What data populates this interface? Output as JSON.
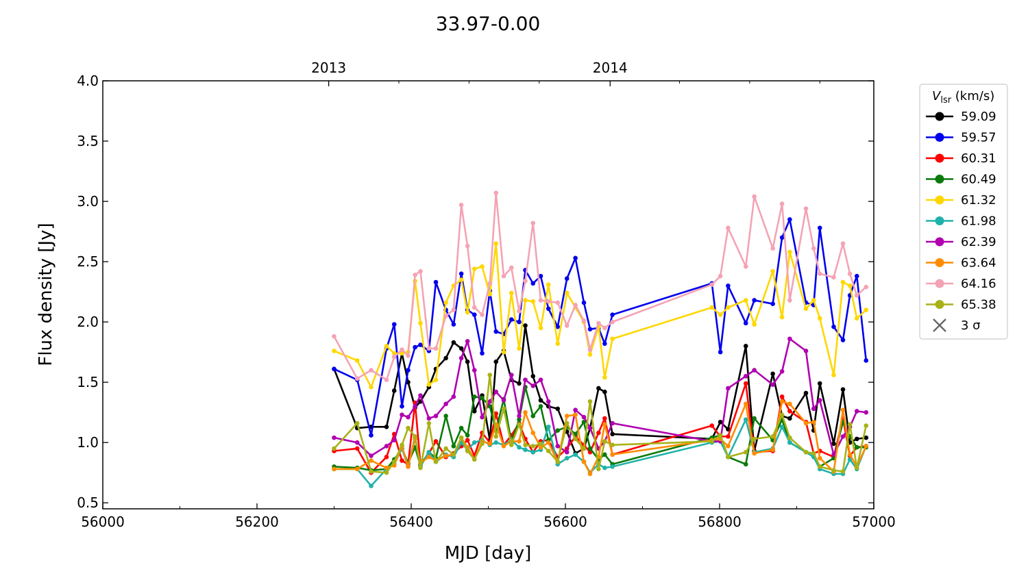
{
  "chart_data": {
    "type": "line",
    "title": "33.97-0.00",
    "xlabel": "MJD [day]",
    "ylabel": "Flux density [Jy]",
    "xlim": [
      56000,
      57000
    ],
    "ylim": [
      0.45,
      4.0
    ],
    "x_ticks": [
      56000,
      56200,
      56400,
      56600,
      56800,
      57000
    ],
    "x_tick_labels": [
      "56000",
      "56200",
      "56400",
      "56600",
      "56800",
      "57000"
    ],
    "y_ticks": [
      0.5,
      1.0,
      1.5,
      2.0,
      2.5,
      3.0,
      3.5,
      4.0
    ],
    "y_tick_labels": [
      "0.5",
      "1.0",
      "1.5",
      "2.0",
      "2.5",
      "3.0",
      "3.5",
      "4.0"
    ],
    "top_axis": {
      "ticks": [
        56293,
        56658
      ],
      "labels": [
        "2013",
        "2014"
      ]
    },
    "legend": {
      "title_main": "V",
      "title_sub": "lsr",
      "title_unit": " (km/s)",
      "position": "outside-right",
      "sigma_label": "3 σ",
      "sigma_color": "#666666"
    },
    "grid": false,
    "x": [
      56300,
      56330,
      56348,
      56368,
      56378,
      56388,
      56396,
      56405,
      56412,
      56423,
      56432,
      56445,
      56455,
      56465,
      56473,
      56482,
      56492,
      56502,
      56510,
      56520,
      56530,
      56540,
      56548,
      56558,
      56568,
      56578,
      56590,
      56602,
      56613,
      56624,
      56632,
      56643,
      56651,
      56661,
      56790,
      56801,
      56811,
      56834,
      56845,
      56869,
      56881,
      56891,
      56912,
      56922,
      56930,
      56948,
      56960,
      56969,
      56978,
      56990
    ],
    "series": [
      {
        "name": "59.09",
        "color": "#000000",
        "values": [
          1.61,
          1.12,
          1.13,
          1.13,
          1.43,
          1.74,
          1.5,
          1.29,
          1.34,
          1.46,
          1.61,
          1.7,
          1.83,
          1.78,
          1.67,
          1.26,
          1.39,
          1.02,
          1.67,
          1.76,
          1.52,
          1.49,
          1.97,
          1.55,
          1.35,
          1.3,
          1.28,
          1.09,
          0.91,
          0.95,
          1.12,
          1.45,
          1.42,
          1.07,
          1.03,
          1.17,
          1.11,
          1.8,
          0.93,
          1.57,
          1.22,
          1.2,
          1.41,
          1.1,
          1.49,
          0.99,
          1.44,
          1.0,
          1.03,
          1.04
        ]
      },
      {
        "name": "59.57",
        "color": "#0000ee",
        "values": [
          1.61,
          1.52,
          1.06,
          1.78,
          1.98,
          1.3,
          1.6,
          1.79,
          1.81,
          1.76,
          2.33,
          2.1,
          1.98,
          2.4,
          2.1,
          2.06,
          1.74,
          2.26,
          1.92,
          1.9,
          2.02,
          2.0,
          2.43,
          2.32,
          2.38,
          2.11,
          1.96,
          2.36,
          2.53,
          2.16,
          1.94,
          1.95,
          1.82,
          2.06,
          2.32,
          1.75,
          2.3,
          1.99,
          2.18,
          2.15,
          2.7,
          2.85,
          2.16,
          2.14,
          2.78,
          1.96,
          1.85,
          2.22,
          2.38,
          1.68
        ]
      },
      {
        "name": "60.31",
        "color": "#ff0000",
        "values": [
          0.93,
          0.95,
          0.75,
          0.88,
          1.07,
          0.85,
          0.82,
          1.33,
          0.82,
          0.91,
          1.01,
          0.88,
          0.91,
          0.97,
          1.02,
          0.89,
          1.08,
          1.0,
          1.24,
          0.98,
          1.06,
          1.16,
          1.03,
          0.92,
          1.01,
          1.02,
          0.88,
          0.95,
          1.05,
          0.98,
          0.92,
          1.08,
          1.2,
          0.9,
          1.14,
          1.05,
          1.05,
          1.49,
          0.92,
          0.93,
          1.38,
          1.26,
          1.17,
          0.91,
          0.93,
          0.88,
          1.2,
          0.89,
          0.96,
          0.97
        ]
      },
      {
        "name": "60.49",
        "color": "#0a7a0a",
        "values": [
          0.8,
          0.79,
          0.77,
          0.78,
          0.86,
          0.95,
          0.83,
          0.96,
          0.81,
          0.92,
          0.87,
          1.22,
          0.97,
          1.12,
          1.06,
          1.38,
          1.37,
          1.3,
          1.1,
          1.36,
          1.0,
          1.19,
          1.46,
          1.22,
          1.3,
          1.02,
          1.1,
          1.13,
          1.07,
          1.17,
          0.95,
          0.86,
          0.9,
          0.82,
          1.04,
          1.06,
          0.88,
          0.82,
          1.2,
          1.02,
          1.19,
          1.0,
          0.92,
          0.91,
          0.8,
          0.87,
          1.17,
          1.05,
          0.96,
          0.96
        ]
      },
      {
        "name": "61.32",
        "color": "#ffd700",
        "values": [
          1.76,
          1.68,
          1.46,
          1.8,
          1.74,
          1.74,
          1.75,
          2.34,
          1.99,
          1.48,
          1.52,
          2.16,
          2.3,
          2.35,
          2.08,
          2.44,
          2.46,
          2.23,
          2.65,
          1.75,
          2.24,
          1.78,
          2.18,
          2.17,
          1.95,
          2.31,
          1.82,
          2.24,
          2.12,
          2.0,
          1.73,
          1.96,
          1.54,
          1.86,
          2.12,
          2.06,
          2.12,
          2.18,
          1.98,
          2.42,
          2.04,
          2.58,
          2.11,
          2.18,
          2.03,
          1.56,
          2.33,
          2.3,
          2.03,
          2.1
        ]
      },
      {
        "name": "61.98",
        "color": "#20b2aa",
        "values": [
          0.78,
          0.78,
          0.64,
          0.78,
          0.82,
          0.95,
          0.8,
          1.05,
          0.8,
          0.92,
          0.84,
          0.9,
          0.88,
          1.0,
          0.94,
          1.0,
          1.02,
          0.98,
          1.0,
          0.98,
          1.02,
          0.96,
          0.94,
          0.92,
          0.94,
          1.13,
          0.82,
          0.87,
          0.9,
          0.84,
          0.75,
          0.82,
          0.79,
          0.8,
          1.0,
          1.01,
          0.88,
          1.19,
          0.92,
          0.95,
          1.13,
          1.0,
          0.92,
          0.88,
          0.78,
          0.74,
          0.74,
          0.86,
          0.78,
          0.97
        ]
      },
      {
        "name": "62.39",
        "color": "#b000b0",
        "values": [
          1.04,
          1.0,
          0.89,
          0.97,
          1.02,
          1.23,
          1.21,
          1.3,
          1.39,
          1.2,
          1.22,
          1.32,
          1.38,
          1.7,
          1.84,
          1.6,
          1.21,
          1.34,
          1.42,
          1.35,
          1.56,
          1.22,
          1.52,
          1.47,
          1.52,
          1.34,
          0.97,
          0.92,
          1.27,
          1.21,
          1.12,
          0.95,
          1.01,
          1.16,
          1.01,
          1.01,
          1.45,
          1.55,
          1.6,
          1.48,
          1.59,
          1.86,
          1.76,
          1.28,
          1.35,
          0.9,
          1.05,
          1.13,
          1.26,
          1.25
        ]
      },
      {
        "name": "63.64",
        "color": "#ff8c00",
        "values": [
          0.78,
          0.78,
          0.85,
          0.79,
          0.81,
          0.97,
          0.8,
          1.03,
          0.83,
          0.88,
          0.85,
          0.89,
          0.9,
          1.04,
          0.96,
          0.86,
          1.01,
          0.99,
          1.15,
          0.97,
          1.01,
          1.01,
          1.25,
          1.08,
          0.96,
          1.0,
          0.84,
          1.22,
          1.23,
          0.84,
          0.74,
          0.88,
          1.15,
          0.9,
          1.02,
          1.03,
          0.97,
          1.32,
          0.91,
          0.94,
          1.34,
          1.32,
          1.16,
          1.17,
          0.87,
          0.76,
          1.27,
          0.9,
          0.8,
          0.97
        ]
      },
      {
        "name": "64.16",
        "color": "#f4a3b4",
        "values": [
          1.88,
          1.53,
          1.6,
          1.52,
          1.71,
          1.77,
          1.72,
          2.39,
          2.42,
          1.78,
          1.78,
          2.05,
          2.1,
          2.97,
          2.63,
          2.12,
          2.06,
          2.32,
          3.07,
          2.38,
          2.45,
          2.09,
          2.34,
          2.82,
          2.18,
          2.17,
          2.16,
          1.97,
          2.14,
          2.01,
          1.77,
          1.99,
          1.95,
          2.0,
          2.31,
          2.38,
          2.78,
          2.46,
          3.04,
          2.61,
          2.98,
          2.18,
          2.94,
          2.61,
          2.4,
          2.37,
          2.65,
          2.4,
          2.22,
          2.29
        ]
      },
      {
        "name": "65.38",
        "color": "#a8b216",
        "values": [
          0.95,
          1.16,
          0.76,
          0.75,
          0.84,
          0.98,
          1.12,
          1.05,
          0.79,
          1.16,
          0.84,
          0.95,
          0.9,
          1.04,
          0.93,
          0.86,
          0.99,
          1.56,
          1.05,
          1.28,
          0.98,
          1.15,
          0.98,
          0.97,
          0.99,
          0.93,
          0.84,
          1.16,
          1.03,
          0.95,
          1.34,
          0.78,
          1.01,
          0.98,
          1.01,
          1.06,
          0.88,
          0.92,
          1.03,
          1.05,
          1.23,
          1.04,
          0.92,
          0.91,
          0.8,
          0.77,
          0.76,
          1.15,
          0.79,
          1.14
        ]
      }
    ]
  }
}
